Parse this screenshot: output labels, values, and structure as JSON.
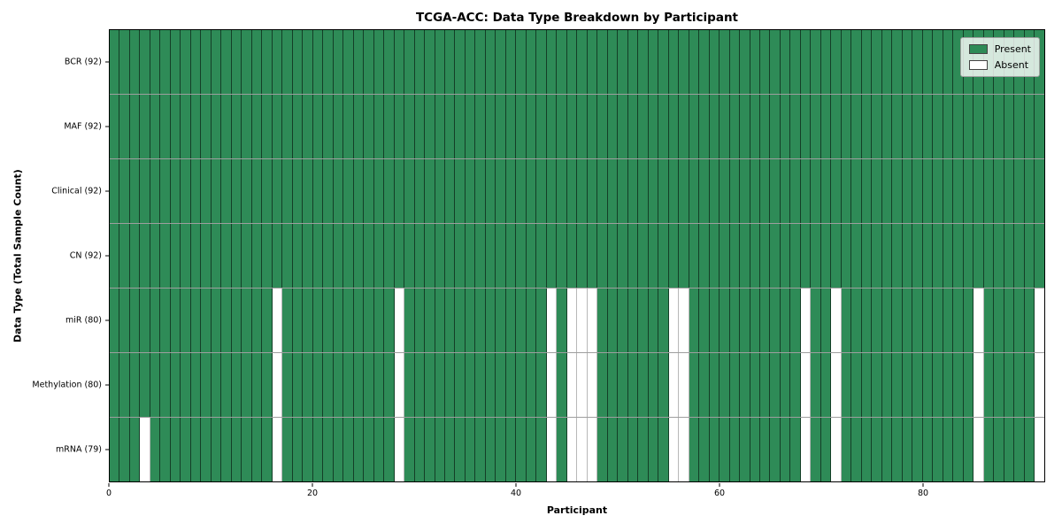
{
  "colors": {
    "present": "#2e8b57",
    "absent": "#ffffff"
  },
  "chart_data": {
    "type": "heatmap",
    "title": "TCGA-ACC: Data Type Breakdown by Participant",
    "xlabel": "Participant",
    "ylabel": "Data Type (Total Sample Count)",
    "legend_position": "upper-right",
    "legend": {
      "entries": [
        {
          "label": "Present",
          "color": "#2e8b57"
        },
        {
          "label": "Absent",
          "color": "#ffffff"
        }
      ]
    },
    "n_participants": 92,
    "x_axis": {
      "ticks": [
        0,
        20,
        40,
        60,
        80
      ],
      "range": [
        0,
        92
      ]
    },
    "rows": [
      {
        "label": "BCR (92)",
        "total": 92,
        "absent_participants": []
      },
      {
        "label": "MAF (92)",
        "total": 92,
        "absent_participants": []
      },
      {
        "label": "Clinical (92)",
        "total": 92,
        "absent_participants": []
      },
      {
        "label": "CN (92)",
        "total": 92,
        "absent_participants": []
      },
      {
        "label": "miR (80)",
        "total": 80,
        "absent_participants": [
          16,
          28,
          43,
          45,
          46,
          47,
          55,
          56,
          68,
          71,
          85,
          91
        ]
      },
      {
        "label": "Methylation (80)",
        "total": 80,
        "absent_participants": [
          16,
          28,
          43,
          45,
          46,
          47,
          55,
          56,
          68,
          71,
          85,
          91
        ]
      },
      {
        "label": "mRNA (79)",
        "total": 79,
        "absent_participants": [
          3,
          16,
          28,
          43,
          45,
          46,
          47,
          55,
          56,
          68,
          71,
          85,
          91
        ]
      }
    ]
  }
}
